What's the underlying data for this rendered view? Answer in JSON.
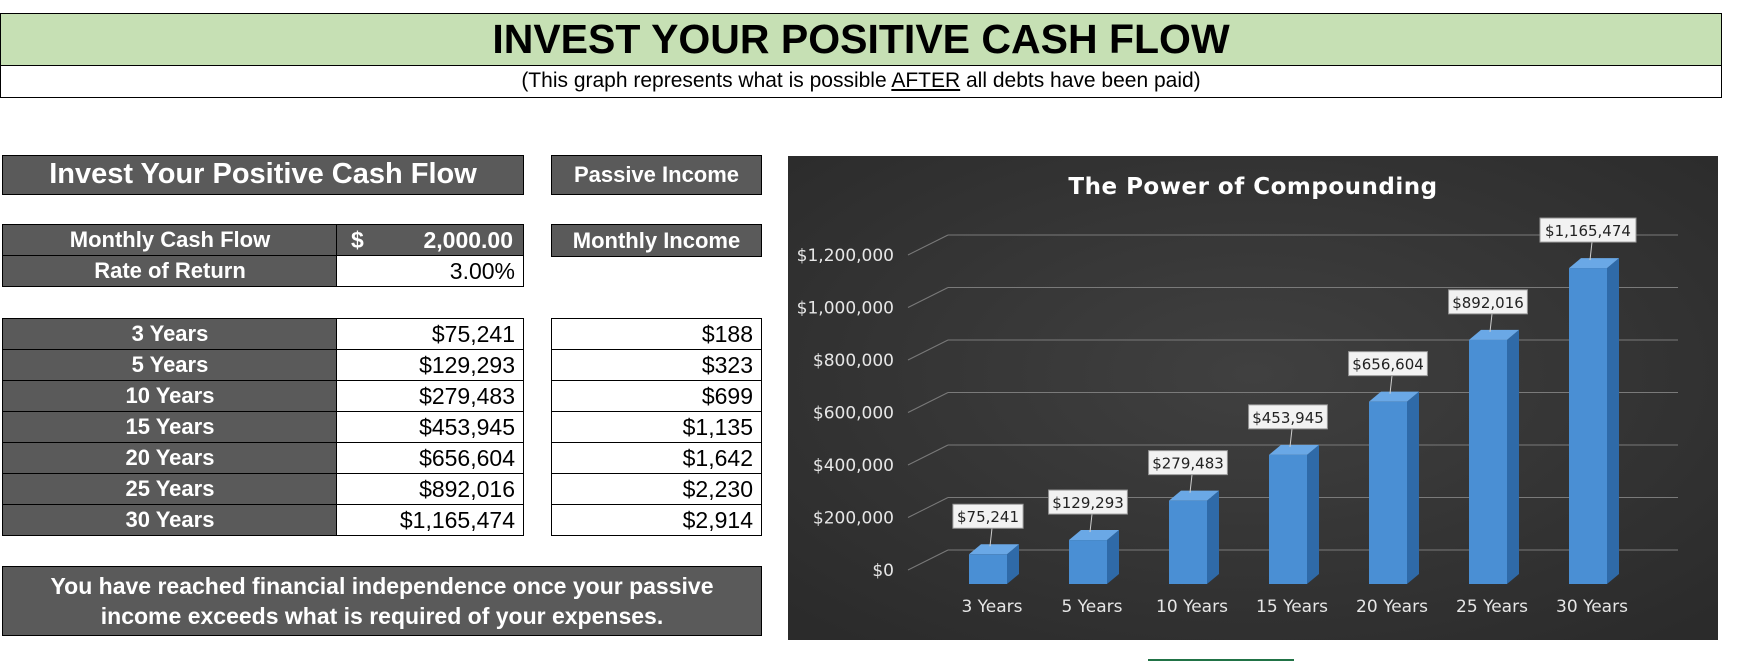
{
  "header": {
    "title": "INVEST YOUR POSITIVE CASH FLOW",
    "subtitle_pre": "(This graph represents what is possible ",
    "subtitle_emph": "AFTER",
    "subtitle_post": " all debts have been paid)"
  },
  "calculator": {
    "heading": "Invest Your Positive Cash Flow",
    "monthly_cash_flow_label": "Monthly Cash Flow",
    "monthly_cash_flow_currency": "$",
    "monthly_cash_flow_value": "2,000.00",
    "rate_of_return_label": "Rate of Return",
    "rate_of_return_value": "3.00%",
    "rows": [
      {
        "label": "3 Years",
        "value": "$75,241"
      },
      {
        "label": "5 Years",
        "value": "$129,293"
      },
      {
        "label": "10 Years",
        "value": "$279,483"
      },
      {
        "label": "15 Years",
        "value": "$453,945"
      },
      {
        "label": "20 Years",
        "value": "$656,604"
      },
      {
        "label": "25 Years",
        "value": "$892,016"
      },
      {
        "label": "30 Years",
        "value": "$1,165,474"
      }
    ]
  },
  "passive": {
    "heading": "Passive Income",
    "monthly_income_label": "Monthly Income",
    "values": [
      "$188",
      "$323",
      "$699",
      "$1,135",
      "$1,642",
      "$2,230",
      "$2,914"
    ]
  },
  "note": {
    "line1": "You have reached financial independence once your passive",
    "line2": "income exceeds what is required of your expenses."
  },
  "colors": {
    "title_bg": "#c6e0b4",
    "dark_box": "#5a5a5a",
    "chart_bg": "#404040",
    "bar": "#4a8fd4"
  },
  "chart_data": {
    "type": "bar",
    "title": "The Power of Compounding",
    "categories": [
      "3 Years",
      "5 Years",
      "10 Years",
      "15 Years",
      "20 Years",
      "25 Years",
      "30 Years"
    ],
    "values": [
      75241,
      129293,
      279483,
      453945,
      656604,
      892016,
      1165474
    ],
    "data_labels": [
      "$75,241",
      "$129,293",
      "$279,483",
      "$453,945",
      "$656,604",
      "$892,016",
      "$1,165,474"
    ],
    "yticks": [
      0,
      200000,
      400000,
      600000,
      800000,
      1000000,
      1200000
    ],
    "ytick_labels": [
      "$0",
      "$200,000",
      "$400,000",
      "$600,000",
      "$800,000",
      "$1,000,000",
      "$1,200,000"
    ],
    "ylim": [
      0,
      1200000
    ],
    "grid": true,
    "legend": "none",
    "style": "3d-column"
  }
}
